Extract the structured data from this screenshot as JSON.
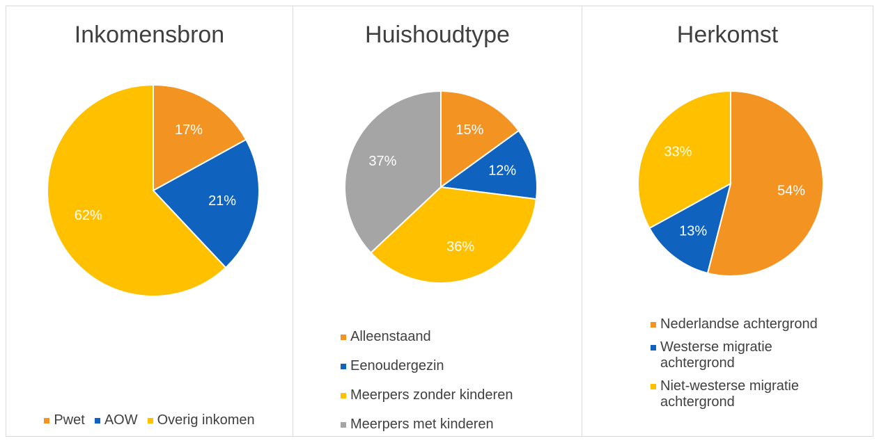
{
  "chart_data": [
    {
      "type": "pie",
      "title": "Inkomensbron",
      "categories": [
        "Pwet",
        "AOW",
        "Overig inkomen"
      ],
      "values": [
        17,
        21,
        62
      ],
      "value_labels": [
        "17%",
        "21%",
        "62%"
      ],
      "colors": [
        "#f39322",
        "#0f62be",
        "#ffc000"
      ],
      "legend": "bottom",
      "legend_layout": "row"
    },
    {
      "type": "pie",
      "title": "Huishoudtype",
      "categories": [
        "Alleenstaand",
        "Eenoudergezin",
        "Meerpers zonder kinderen",
        "Meerpers met kinderen"
      ],
      "values": [
        15,
        12,
        36,
        37
      ],
      "value_labels": [
        "15%",
        "12%",
        "36%",
        "37%"
      ],
      "colors": [
        "#f39322",
        "#0f62be",
        "#ffc000",
        "#a5a5a5"
      ],
      "legend": "bottom",
      "legend_layout": "column"
    },
    {
      "type": "pie",
      "title": "Herkomst",
      "categories": [
        "Nederlandse achtergrond",
        "Westerse migratie achtergrond",
        "Niet-westerse migratie achtergrond"
      ],
      "values": [
        54,
        13,
        33
      ],
      "value_labels": [
        "54%",
        "13%",
        "33%"
      ],
      "colors": [
        "#f39322",
        "#0f62be",
        "#ffc000"
      ],
      "legend": "bottom",
      "legend_layout": "column"
    }
  ]
}
